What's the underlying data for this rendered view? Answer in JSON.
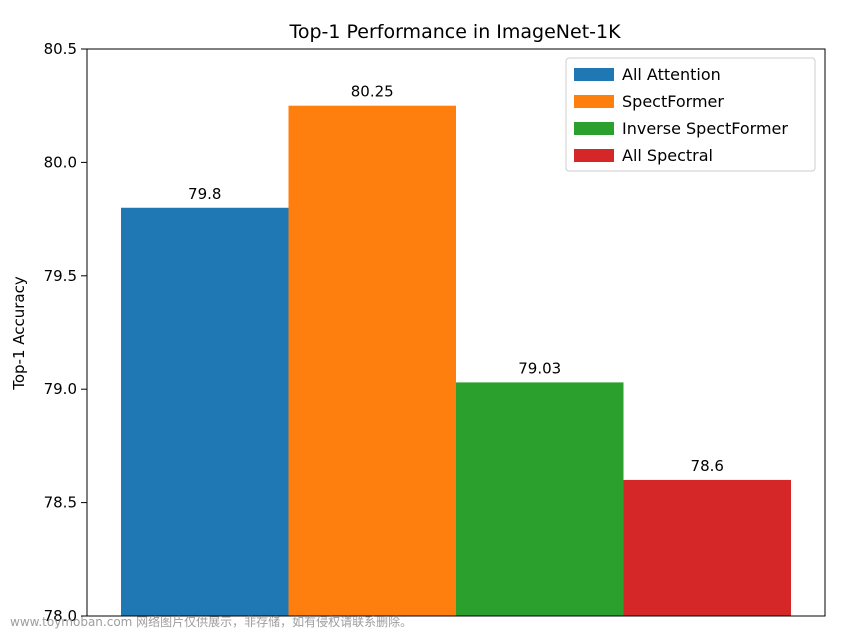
{
  "watermark": "www.toymoban.com 网络图片仅供展示，非存储，如有侵权请联系删除。",
  "chart_data": {
    "type": "bar",
    "title": "Top-1 Performance in ImageNet-1K",
    "xlabel": "",
    "ylabel": "Top-1 Accuracy",
    "ylim": [
      78.0,
      80.5
    ],
    "yticks": [
      "78.0",
      "78.5",
      "79.0",
      "79.5",
      "80.0",
      "80.5"
    ],
    "grid": false,
    "legend_position": "top-right",
    "series": [
      {
        "name": "All Attention",
        "value": 79.8,
        "label": "79.8",
        "color": "#1f77b4"
      },
      {
        "name": "SpectFormer",
        "value": 80.25,
        "label": "80.25",
        "color": "#ff7f0e"
      },
      {
        "name": "Inverse SpectFormer",
        "value": 79.03,
        "label": "79.03",
        "color": "#2ca02c"
      },
      {
        "name": "All Spectral",
        "value": 78.6,
        "label": "78.6",
        "color": "#d62728"
      }
    ]
  }
}
